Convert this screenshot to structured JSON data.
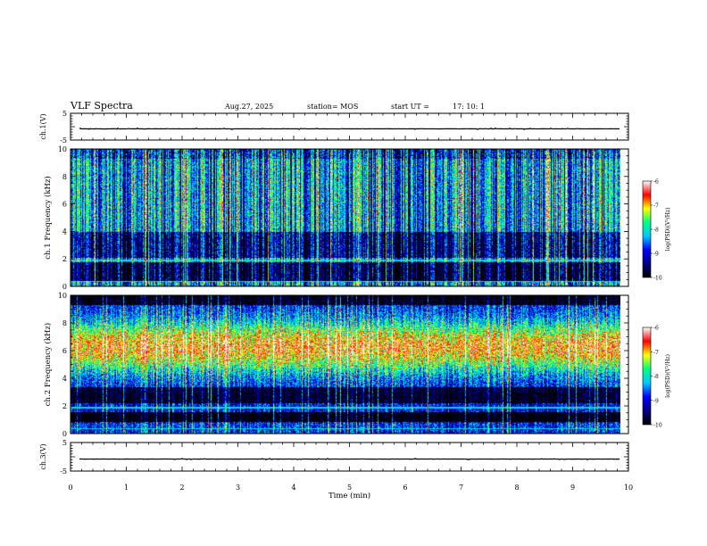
{
  "header": {
    "title": "VLF Spectra",
    "date": "Aug.27, 2025",
    "station": "station= MOS",
    "start_label": "start  UT  =",
    "start_time": "17: 10: 1"
  },
  "chart_data": {
    "type": "heatmap",
    "xlabel": "Time  (min)",
    "xlim": [
      0,
      10
    ],
    "xticks": [
      "0",
      "1",
      "2",
      "3",
      "4",
      "5",
      "6",
      "7",
      "8",
      "9",
      "10"
    ],
    "panels": [
      {
        "id": "ch1-voltage",
        "ylabel": "ch.1(V)",
        "ylim": [
          -5,
          5
        ],
        "yticks": [
          "5",
          "-5"
        ],
        "trace_level": -0.8
      },
      {
        "id": "ch1-spectrogram",
        "ylabel": "ch.1 Frequency  (kHz)",
        "ylim": [
          0,
          10
        ],
        "yticks": [
          "0",
          "2",
          "4",
          "6",
          "8",
          "10"
        ],
        "data_end_min": 9.85,
        "colorbar": {
          "label": "log(PSD)(V²/Hz)",
          "ticks": [
            "-6",
            "-7",
            "-8",
            "-9",
            "-10"
          ],
          "range": [
            -10,
            -6
          ]
        }
      },
      {
        "id": "ch2-spectrogram",
        "ylabel": "ch.2 Frequency  (kHz)",
        "ylim": [
          0,
          10
        ],
        "yticks": [
          "0",
          "2",
          "4",
          "6",
          "8",
          "10"
        ],
        "data_end_min": 9.85,
        "colorbar": {
          "label": "log(PSD)(V²/Hz)",
          "ticks": [
            "-6",
            "-7",
            "-8",
            "-9",
            "-10"
          ],
          "range": [
            -10,
            -6
          ]
        }
      },
      {
        "id": "ch3-voltage",
        "ylabel": "ch.3(V)",
        "ylim": [
          -5,
          5
        ],
        "yticks": [
          "5",
          "-5"
        ],
        "trace_level": -0.8
      }
    ],
    "colormap": [
      "#000000",
      "#000080",
      "#0000ff",
      "#00c8ff",
      "#00ff80",
      "#ffff00",
      "#ff0000",
      "#ffffff"
    ]
  }
}
